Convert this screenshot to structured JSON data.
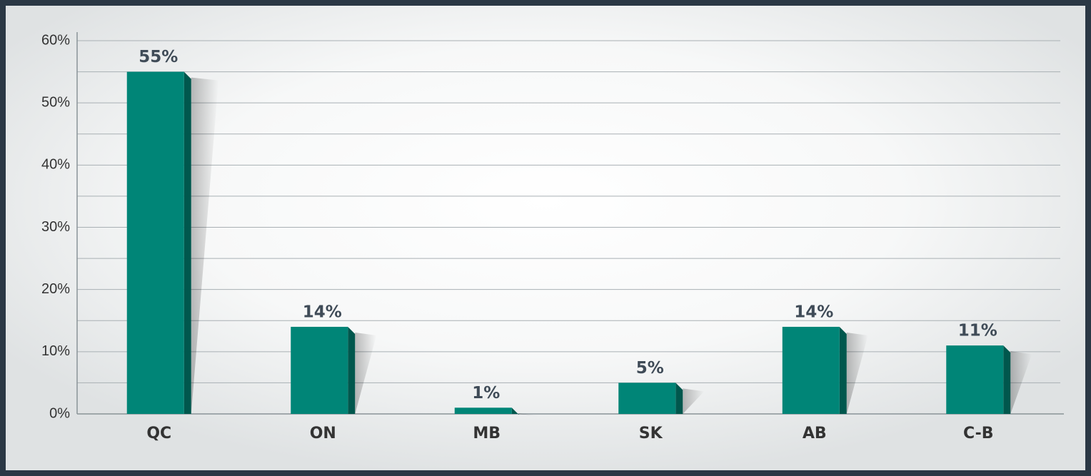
{
  "chart_data": {
    "type": "bar",
    "categories": [
      "QC",
      "ON",
      "MB",
      "SK",
      "AB",
      "C-B"
    ],
    "values": [
      55,
      14,
      1,
      5,
      14,
      11
    ],
    "value_labels": [
      "55%",
      "14%",
      "1%",
      "5%",
      "14%",
      "11%"
    ],
    "color": "#008577",
    "ylim": [
      0,
      60
    ],
    "yticks": [
      {
        "value": 0,
        "label": "0%"
      },
      {
        "value": 10,
        "label": "10%"
      },
      {
        "value": 20,
        "label": "20%"
      },
      {
        "value": 30,
        "label": "30%"
      },
      {
        "value": 40,
        "label": "40%"
      },
      {
        "value": 50,
        "label": "50%"
      },
      {
        "value": 60,
        "label": "60%"
      }
    ],
    "minor_yticks": [
      5,
      15,
      25,
      35,
      45,
      55
    ],
    "grid": true
  }
}
